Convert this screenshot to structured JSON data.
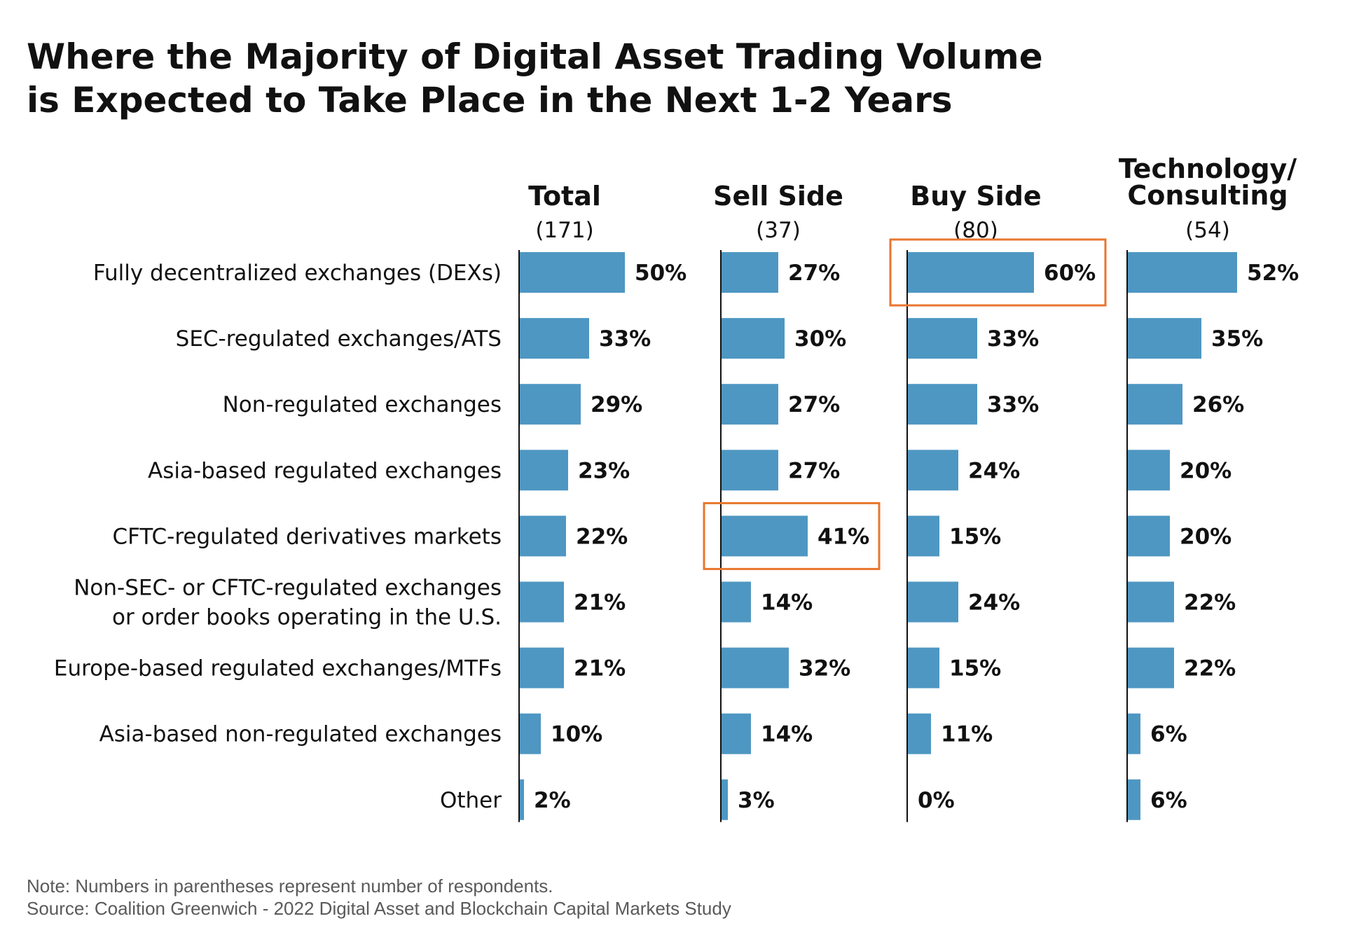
{
  "chart_data": {
    "type": "bar",
    "orientation": "horizontal",
    "title_lines": [
      "Where the Majority of Digital Asset Trading Volume",
      "is Expected to Take Place in the Next 1-2 Years"
    ],
    "categories": [
      [
        "Fully decentralized exchanges (DEXs)"
      ],
      [
        "SEC-regulated exchanges/ATS"
      ],
      [
        "Non-regulated exchanges"
      ],
      [
        "Asia-based regulated exchanges"
      ],
      [
        "CFTC-regulated derivatives markets"
      ],
      [
        "Non-SEC- or CFTC-regulated exchanges",
        "or order books operating in the U.S."
      ],
      [
        "Europe-based regulated exchanges/MTFs"
      ],
      [
        "Asia-based non-regulated exchanges"
      ],
      [
        "Other"
      ]
    ],
    "series": [
      {
        "name": [
          "Total"
        ],
        "respondents": "(171)",
        "values": [
          50,
          33,
          29,
          23,
          22,
          21,
          21,
          10,
          2
        ],
        "highlight_index": null
      },
      {
        "name": [
          "Sell Side"
        ],
        "respondents": "(37)",
        "values": [
          27,
          30,
          27,
          27,
          41,
          14,
          32,
          14,
          3
        ],
        "highlight_index": 4
      },
      {
        "name": [
          "Buy Side"
        ],
        "respondents": "(80)",
        "values": [
          60,
          33,
          33,
          24,
          15,
          24,
          15,
          11,
          0
        ],
        "highlight_index": 0
      },
      {
        "name": [
          "Technology/",
          "Consulting"
        ],
        "respondents": "(54)",
        "values": [
          52,
          35,
          26,
          20,
          20,
          22,
          22,
          6,
          6
        ],
        "highlight_index": null
      }
    ],
    "value_suffix": "%",
    "xlim": [
      0,
      100
    ],
    "grid": false,
    "legend": "none"
  },
  "colors": {
    "bar": "#4e97c2",
    "highlight": "#e8762d",
    "axis": "#111111",
    "text": "#111111",
    "footnote": "#5a5a5a"
  },
  "footnotes": {
    "note": "Note: Numbers in parentheses represent number of respondents.",
    "source": "Source: Coalition Greenwich - 2022 Digital Asset and Blockchain Capital Markets Study"
  }
}
